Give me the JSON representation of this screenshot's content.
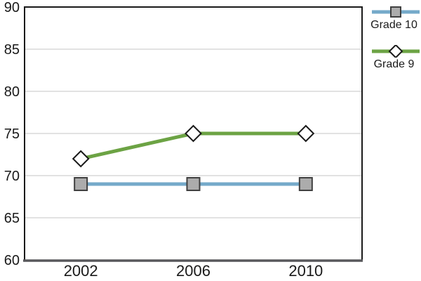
{
  "page": {
    "background": "#FFFFFF"
  },
  "chart_data": {
    "type": "line",
    "title": "",
    "categories": [
      "2002",
      "2006",
      "2010"
    ],
    "series": [
      {
        "name": "Grade 10",
        "values": [
          69,
          69,
          69
        ],
        "color": "#75AACA",
        "marker": "square",
        "marker_fill": "#ACACAC",
        "marker_stroke": "#404040"
      },
      {
        "name": "Grade 9",
        "values": [
          72,
          75,
          75
        ],
        "color": "#6CA344",
        "marker": "diamond",
        "marker_fill": "#FFFFFF",
        "marker_stroke": "#1A1A1A"
      }
    ],
    "xlabel": "",
    "ylabel": "",
    "ylim": [
      60,
      90
    ],
    "yticks": [
      60,
      65,
      70,
      75,
      80,
      85,
      90
    ],
    "grid": "horizontal-only",
    "legend_position": "top-right",
    "colors": {
      "grid": "#D9D9D9",
      "plot_border": "#1A1A1A",
      "x_axis": "#58585C",
      "text": "#1A1A1A"
    }
  }
}
